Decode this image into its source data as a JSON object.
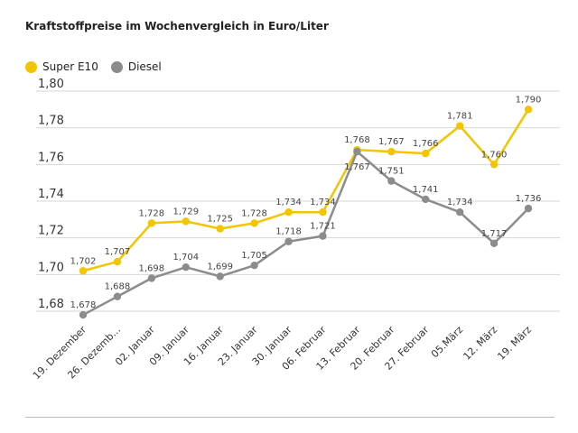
{
  "chart_data": {
    "type": "line",
    "title": "Kraftstoffpreise im Wochenvergleich in Euro/Liter",
    "categories": [
      "19. Dezember",
      "26. Dezemb...",
      "02. Januar",
      "09. Januar",
      "16. Januar",
      "23. Januar",
      "30. Januar",
      "06. Februar",
      "13. Februar",
      "20. Februar",
      "27. Februar",
      "05.März",
      "12. März",
      "19. März"
    ],
    "series": [
      {
        "name": "Super E10",
        "color": "#f2c500",
        "values": [
          1.702,
          1.707,
          1.728,
          1.729,
          1.725,
          1.728,
          1.734,
          1.734,
          1.768,
          1.767,
          1.766,
          1.781,
          1.76,
          1.79
        ],
        "labels": [
          "1,702",
          "1,707",
          "1,728",
          "1,729",
          "1,725",
          "1,728",
          "1,734",
          "1,734",
          "1,768",
          "1,767",
          "1,766",
          "1,781",
          "1,760",
          "1,790"
        ]
      },
      {
        "name": "Diesel",
        "color": "#8c8c8c",
        "values": [
          1.678,
          1.688,
          1.698,
          1.704,
          1.699,
          1.705,
          1.718,
          1.721,
          1.767,
          1.751,
          1.741,
          1.734,
          1.717,
          1.736
        ],
        "labels": [
          "1,678",
          "1,688",
          "1,698",
          "1,704",
          "1,699",
          "1,705",
          "1,718",
          "1,721",
          "1,767",
          "1,751",
          "1,741",
          "1,734",
          "1,717",
          "1,736"
        ]
      }
    ],
    "yticks": [
      "1,68",
      "1,70",
      "1,72",
      "1,74",
      "1,76",
      "1,78",
      "1,80"
    ],
    "ytick_values": [
      1.68,
      1.7,
      1.72,
      1.74,
      1.76,
      1.78,
      1.8
    ],
    "ylim": [
      1.68,
      1.8
    ],
    "grid": true,
    "legend": "top-left"
  }
}
